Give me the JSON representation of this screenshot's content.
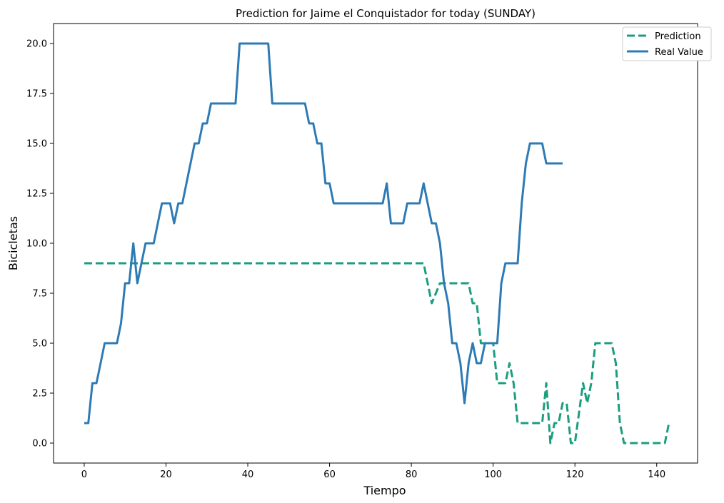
{
  "chart_data": {
    "type": "line",
    "title": "Prediction for Jaime el Conquistador for today (SUNDAY)",
    "xlabel": "Tiempo",
    "ylabel": "Bicicletas",
    "xlim": [
      -7.5,
      150
    ],
    "ylim": [
      -1,
      21
    ],
    "xticks": [
      0,
      20,
      40,
      60,
      80,
      100,
      120,
      140
    ],
    "yticks": [
      0.0,
      2.5,
      5.0,
      7.5,
      10.0,
      12.5,
      15.0,
      17.5,
      20.0
    ],
    "ytick_labels": [
      "0.0",
      "2.5",
      "5.0",
      "7.5",
      "10.0",
      "12.5",
      "15.0",
      "17.5",
      "20.0"
    ],
    "grid": false,
    "legend_position": "top-right",
    "series": [
      {
        "name": "Prediction",
        "color": "#1a9e7f",
        "dashed": true,
        "points": [
          [
            0,
            9
          ],
          [
            83,
            9
          ],
          [
            85,
            7
          ],
          [
            87,
            8
          ],
          [
            94,
            8
          ],
          [
            95,
            7
          ],
          [
            96,
            7
          ],
          [
            97,
            5
          ],
          [
            100,
            5
          ],
          [
            101,
            3
          ],
          [
            103,
            3
          ],
          [
            104,
            4
          ],
          [
            105,
            3
          ],
          [
            106,
            1
          ],
          [
            112,
            1
          ],
          [
            113,
            3
          ],
          [
            114,
            0
          ],
          [
            115,
            1
          ],
          [
            116,
            1
          ],
          [
            117,
            2
          ],
          [
            118,
            2
          ],
          [
            119,
            0
          ],
          [
            120,
            0
          ],
          [
            122,
            3
          ],
          [
            123,
            2
          ],
          [
            124,
            3
          ],
          [
            125,
            5
          ],
          [
            129,
            5
          ],
          [
            130,
            4
          ],
          [
            131,
            1
          ],
          [
            132,
            0
          ],
          [
            142,
            0
          ],
          [
            143,
            1
          ]
        ]
      },
      {
        "name": "Real Value",
        "color": "#2e7ab5",
        "dashed": false,
        "points": [
          [
            0,
            1
          ],
          [
            1,
            1
          ],
          [
            2,
            3
          ],
          [
            3,
            3
          ],
          [
            4,
            4
          ],
          [
            5,
            5
          ],
          [
            8,
            5
          ],
          [
            9,
            6
          ],
          [
            10,
            8
          ],
          [
            11,
            8
          ],
          [
            12,
            10
          ],
          [
            13,
            8
          ],
          [
            14,
            9
          ],
          [
            15,
            10
          ],
          [
            17,
            10
          ],
          [
            18,
            11
          ],
          [
            19,
            12
          ],
          [
            21,
            12
          ],
          [
            22,
            11
          ],
          [
            23,
            12
          ],
          [
            24,
            12
          ],
          [
            25,
            13
          ],
          [
            27,
            15
          ],
          [
            28,
            15
          ],
          [
            29,
            16
          ],
          [
            30,
            16
          ],
          [
            31,
            17
          ],
          [
            37,
            17
          ],
          [
            38,
            20
          ],
          [
            45,
            20
          ],
          [
            46,
            17
          ],
          [
            54,
            17
          ],
          [
            55,
            16
          ],
          [
            56,
            16
          ],
          [
            57,
            15
          ],
          [
            58,
            15
          ],
          [
            59,
            13
          ],
          [
            60,
            13
          ],
          [
            61,
            12
          ],
          [
            73,
            12
          ],
          [
            74,
            13
          ],
          [
            75,
            11
          ],
          [
            78,
            11
          ],
          [
            79,
            12
          ],
          [
            82,
            12
          ],
          [
            83,
            13
          ],
          [
            84,
            12
          ],
          [
            85,
            11
          ],
          [
            86,
            11
          ],
          [
            87,
            10
          ],
          [
            88,
            8
          ],
          [
            89,
            7
          ],
          [
            90,
            5
          ],
          [
            91,
            5
          ],
          [
            92,
            4
          ],
          [
            93,
            2
          ],
          [
            94,
            4
          ],
          [
            95,
            5
          ],
          [
            96,
            4
          ],
          [
            97,
            4
          ],
          [
            98,
            5
          ],
          [
            101,
            5
          ],
          [
            102,
            8
          ],
          [
            103,
            9
          ],
          [
            106,
            9
          ],
          [
            107,
            12
          ],
          [
            108,
            14
          ],
          [
            109,
            15
          ],
          [
            112,
            15
          ],
          [
            113,
            14
          ],
          [
            117,
            14
          ]
        ]
      }
    ]
  }
}
